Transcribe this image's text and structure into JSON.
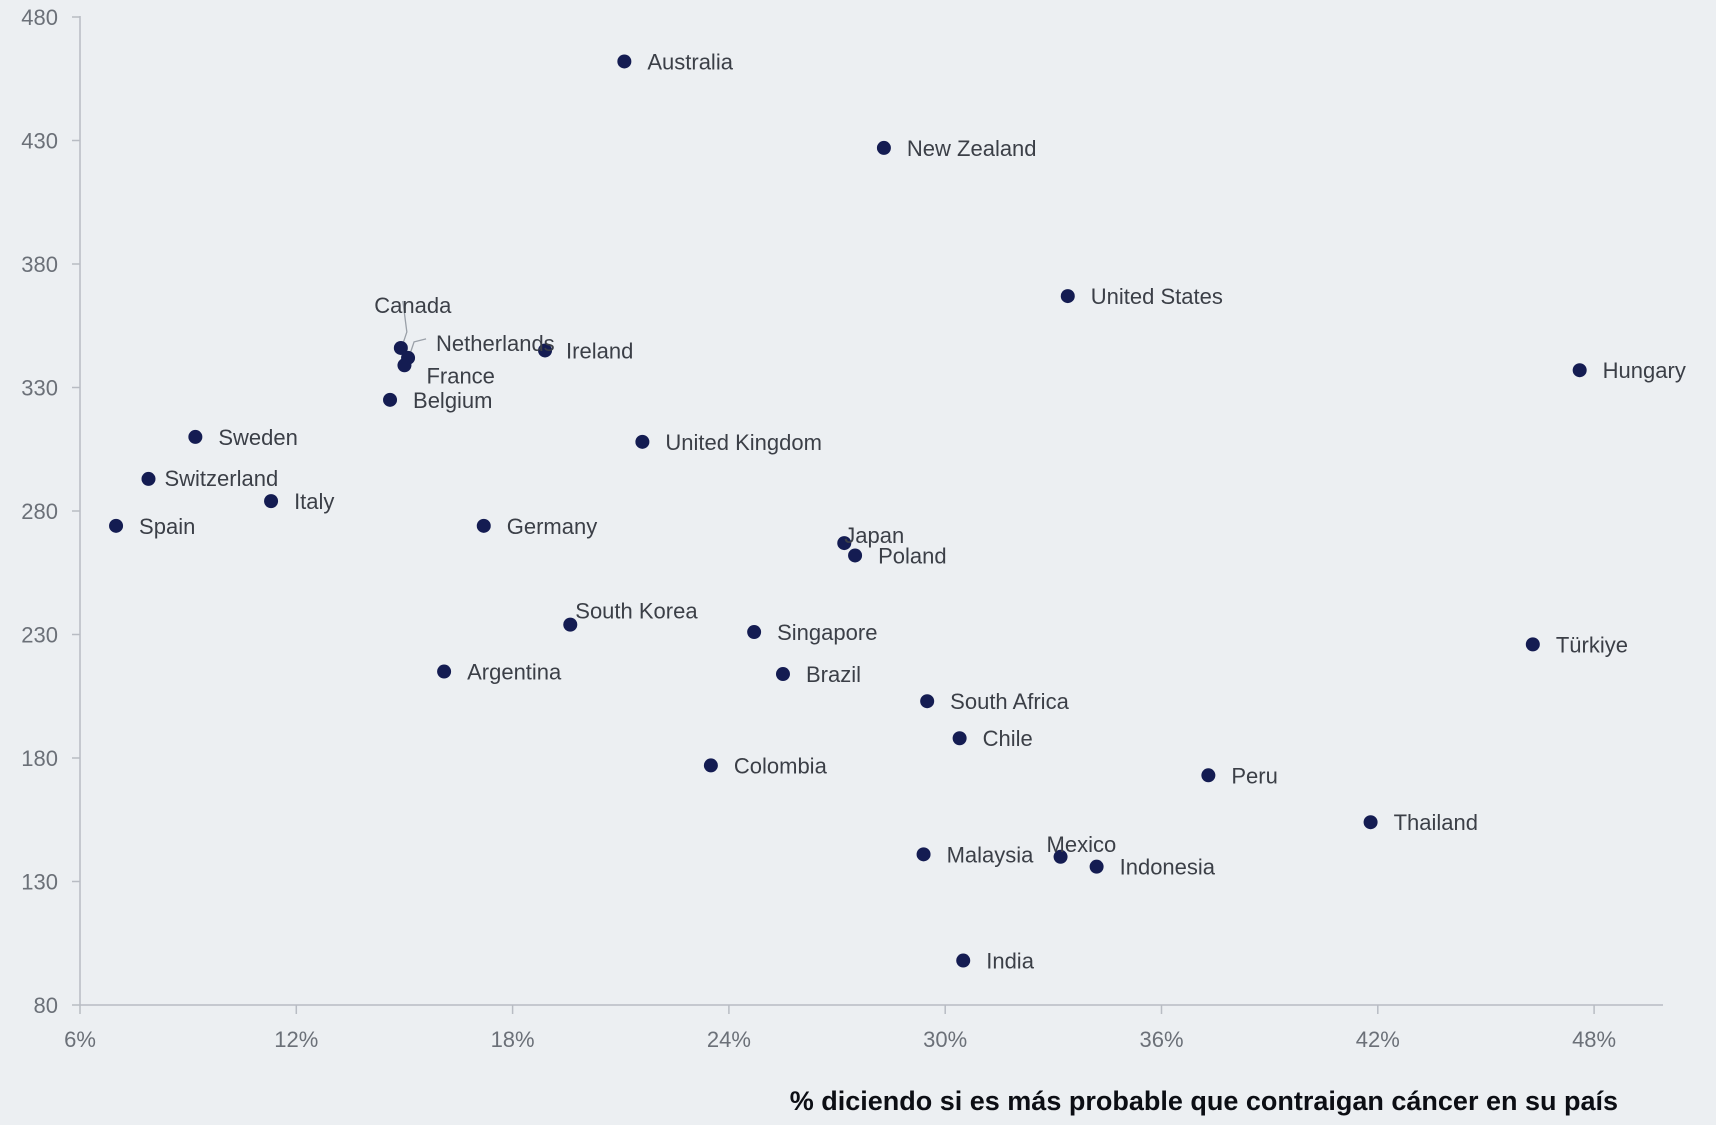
{
  "chart_data": {
    "type": "scatter",
    "title": "",
    "xlabel": "% diciendo si es más probable que contraigan cáncer en su país",
    "ylabel": "",
    "xlim": [
      6,
      50
    ],
    "ylim": [
      80,
      480
    ],
    "x_ticks": [
      6,
      12,
      18,
      24,
      30,
      36,
      42,
      48
    ],
    "x_tick_labels": [
      "6%",
      "12%",
      "18%",
      "24%",
      "30%",
      "36%",
      "42%",
      "48%"
    ],
    "y_ticks": [
      80,
      130,
      180,
      230,
      280,
      330,
      380,
      430,
      480
    ],
    "y_tick_labels": [
      "80",
      "130",
      "180",
      "230",
      "280",
      "330",
      "380",
      "430",
      "480"
    ],
    "grid": false,
    "marker_color": "#141c52",
    "points": [
      {
        "label": "Australia",
        "x": 21.1,
        "y": 462
      },
      {
        "label": "New Zealand",
        "x": 28.3,
        "y": 427
      },
      {
        "label": "United States",
        "x": 33.4,
        "y": 367
      },
      {
        "label": "Hungary",
        "x": 47.6,
        "y": 337
      },
      {
        "label": "Canada",
        "x": 14.9,
        "y": 346
      },
      {
        "label": "Netherlands",
        "x": 15.1,
        "y": 342
      },
      {
        "label": "France",
        "x": 15.0,
        "y": 339
      },
      {
        "label": "Ireland",
        "x": 18.9,
        "y": 345
      },
      {
        "label": "Belgium",
        "x": 14.6,
        "y": 325
      },
      {
        "label": "United Kingdom",
        "x": 21.6,
        "y": 308
      },
      {
        "label": "Sweden",
        "x": 9.2,
        "y": 310
      },
      {
        "label": "Switzerland",
        "x": 7.9,
        "y": 293
      },
      {
        "label": "Italy",
        "x": 11.3,
        "y": 284
      },
      {
        "label": "Spain",
        "x": 7.0,
        "y": 274
      },
      {
        "label": "Germany",
        "x": 17.2,
        "y": 274
      },
      {
        "label": "Japan",
        "x": 27.2,
        "y": 267
      },
      {
        "label": "Poland",
        "x": 27.5,
        "y": 262
      },
      {
        "label": "South Korea",
        "x": 19.6,
        "y": 234
      },
      {
        "label": "Singapore",
        "x": 24.7,
        "y": 231
      },
      {
        "label": "Türkiye",
        "x": 46.3,
        "y": 226
      },
      {
        "label": "Argentina",
        "x": 16.1,
        "y": 215
      },
      {
        "label": "Brazil",
        "x": 25.5,
        "y": 214
      },
      {
        "label": "South Africa",
        "x": 29.5,
        "y": 203
      },
      {
        "label": "Chile",
        "x": 30.4,
        "y": 188
      },
      {
        "label": "Colombia",
        "x": 23.5,
        "y": 177
      },
      {
        "label": "Peru",
        "x": 37.3,
        "y": 173
      },
      {
        "label": "Thailand",
        "x": 41.8,
        "y": 154
      },
      {
        "label": "Malaysia",
        "x": 29.4,
        "y": 141
      },
      {
        "label": "Mexico",
        "x": 33.2,
        "y": 140
      },
      {
        "label": "Indonesia",
        "x": 34.2,
        "y": 136
      },
      {
        "label": "India",
        "x": 30.5,
        "y": 98
      }
    ]
  }
}
